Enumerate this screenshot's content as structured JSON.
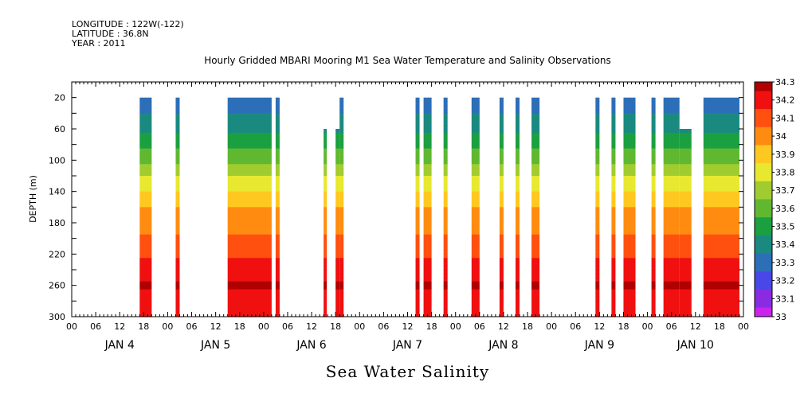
{
  "header": {
    "longitude": "LONGITUDE : 122W(-122)",
    "latitude": "LATITUDE : 36.8N",
    "year": "YEAR : 2011"
  },
  "chart_data": {
    "type": "heatmap",
    "title": "Hourly Gridded MBARI Mooring M1 Sea Water Temperature and Salinity Observations",
    "xlabel": "Sea Water Salinity",
    "ylabel": "DEPTH (m)",
    "x_unit": "hours since JAN 4 00",
    "xlim": [
      0,
      168
    ],
    "ylim": [
      300,
      0
    ],
    "y_ticks": [
      20,
      60,
      100,
      140,
      180,
      220,
      260,
      300
    ],
    "x_hour_ticks": [
      "00",
      "06",
      "12",
      "18",
      "00",
      "06",
      "12",
      "18",
      "00",
      "06",
      "12",
      "18",
      "00",
      "06",
      "12",
      "18",
      "00",
      "06",
      "12",
      "18",
      "00",
      "06",
      "12",
      "18",
      "00",
      "06",
      "12",
      "18",
      "00"
    ],
    "day_labels": [
      "JAN  4",
      "JAN  5",
      "JAN  6",
      "JAN  7",
      "JAN  8",
      "JAN  9",
      "JAN 10"
    ],
    "colorbar": {
      "min": 33,
      "max": 34.3,
      "step": 0.05,
      "labels": [
        "34.3",
        "34.2",
        "34.1",
        "34",
        "33.9",
        "33.8",
        "33.7",
        "33.6",
        "33.5",
        "33.4",
        "33.3",
        "33.2",
        "33.1",
        "33"
      ]
    },
    "colors": {
      "33.00": "#cc22ee",
      "33.10": "#8a2be2",
      "33.20": "#4848e8",
      "33.30": "#2c6fb8",
      "33.40": "#1a8a80",
      "33.50": "#1aa040",
      "33.60": "#60b830",
      "33.70": "#a0cc30",
      "33.80": "#e8e830",
      "33.90": "#ffc820",
      "34.00": "#ff8c10",
      "34.10": "#ff5010",
      "34.20": "#f01010",
      "34.30": "#b00000"
    },
    "profile_depths": [
      20,
      40,
      60,
      80,
      100,
      120,
      140,
      160,
      180,
      200,
      220,
      240,
      260,
      280,
      300
    ],
    "profile": [
      33.3,
      33.35,
      33.42,
      33.52,
      33.62,
      33.74,
      33.86,
      33.95,
      34.0,
      34.06,
      34.13,
      34.2,
      34.26,
      34.22,
      34.18
    ],
    "segments": [
      {
        "start": 17,
        "end": 20,
        "top": 20
      },
      {
        "start": 26,
        "end": 27,
        "top": 20
      },
      {
        "start": 39,
        "end": 50,
        "top": 20
      },
      {
        "start": 51,
        "end": 52,
        "top": 20
      },
      {
        "start": 63,
        "end": 63.8,
        "top": 60
      },
      {
        "start": 66,
        "end": 67,
        "top": 60
      },
      {
        "start": 67,
        "end": 68,
        "top": 20
      },
      {
        "start": 86,
        "end": 87,
        "top": 20
      },
      {
        "start": 88,
        "end": 90,
        "top": 20
      },
      {
        "start": 93,
        "end": 94,
        "top": 20
      },
      {
        "start": 100,
        "end": 102,
        "top": 20
      },
      {
        "start": 107,
        "end": 108,
        "top": 20
      },
      {
        "start": 111,
        "end": 112,
        "top": 20
      },
      {
        "start": 115,
        "end": 117,
        "top": 20
      },
      {
        "start": 131,
        "end": 132,
        "top": 20
      },
      {
        "start": 135,
        "end": 136,
        "top": 20
      },
      {
        "start": 138,
        "end": 141,
        "top": 20
      },
      {
        "start": 145,
        "end": 146,
        "top": 20
      },
      {
        "start": 148,
        "end": 152,
        "top": 20
      },
      {
        "start": 152,
        "end": 155,
        "top": 60
      },
      {
        "start": 158,
        "end": 167,
        "top": 20
      }
    ]
  }
}
